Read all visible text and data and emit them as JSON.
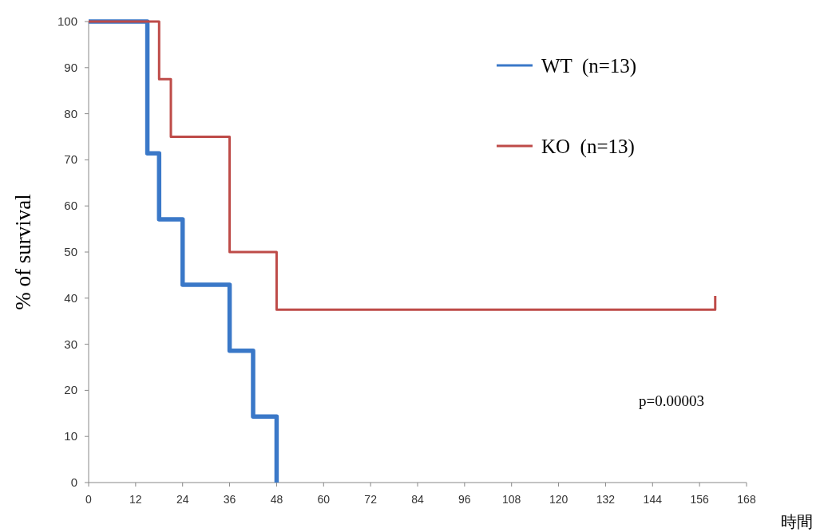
{
  "chart_data": {
    "type": "step",
    "xlabel": "時間",
    "ylabel": "% of survival",
    "xlim": [
      0,
      168
    ],
    "ylim": [
      0,
      100
    ],
    "xticks": [
      0,
      12,
      24,
      36,
      48,
      60,
      72,
      84,
      96,
      108,
      120,
      132,
      144,
      156,
      168
    ],
    "yticks": [
      0,
      10,
      20,
      30,
      40,
      50,
      60,
      70,
      80,
      90,
      100
    ],
    "grid": false,
    "legend": "top right",
    "series": [
      {
        "name": "WT  (n=13)",
        "color": "#3a78c8",
        "x": [
          0,
          15,
          18,
          24,
          36,
          42,
          48
        ],
        "values": [
          100,
          71.4,
          57.1,
          42.9,
          28.6,
          14.3,
          0
        ]
      },
      {
        "name": "KO  (n=13)",
        "color": "#be4b48",
        "x": [
          0,
          18,
          21,
          36,
          48,
          160
        ],
        "values": [
          100,
          87.5,
          75,
          50,
          37.5,
          40.5
        ]
      }
    ],
    "annotations": [
      "p=0.00003"
    ]
  }
}
